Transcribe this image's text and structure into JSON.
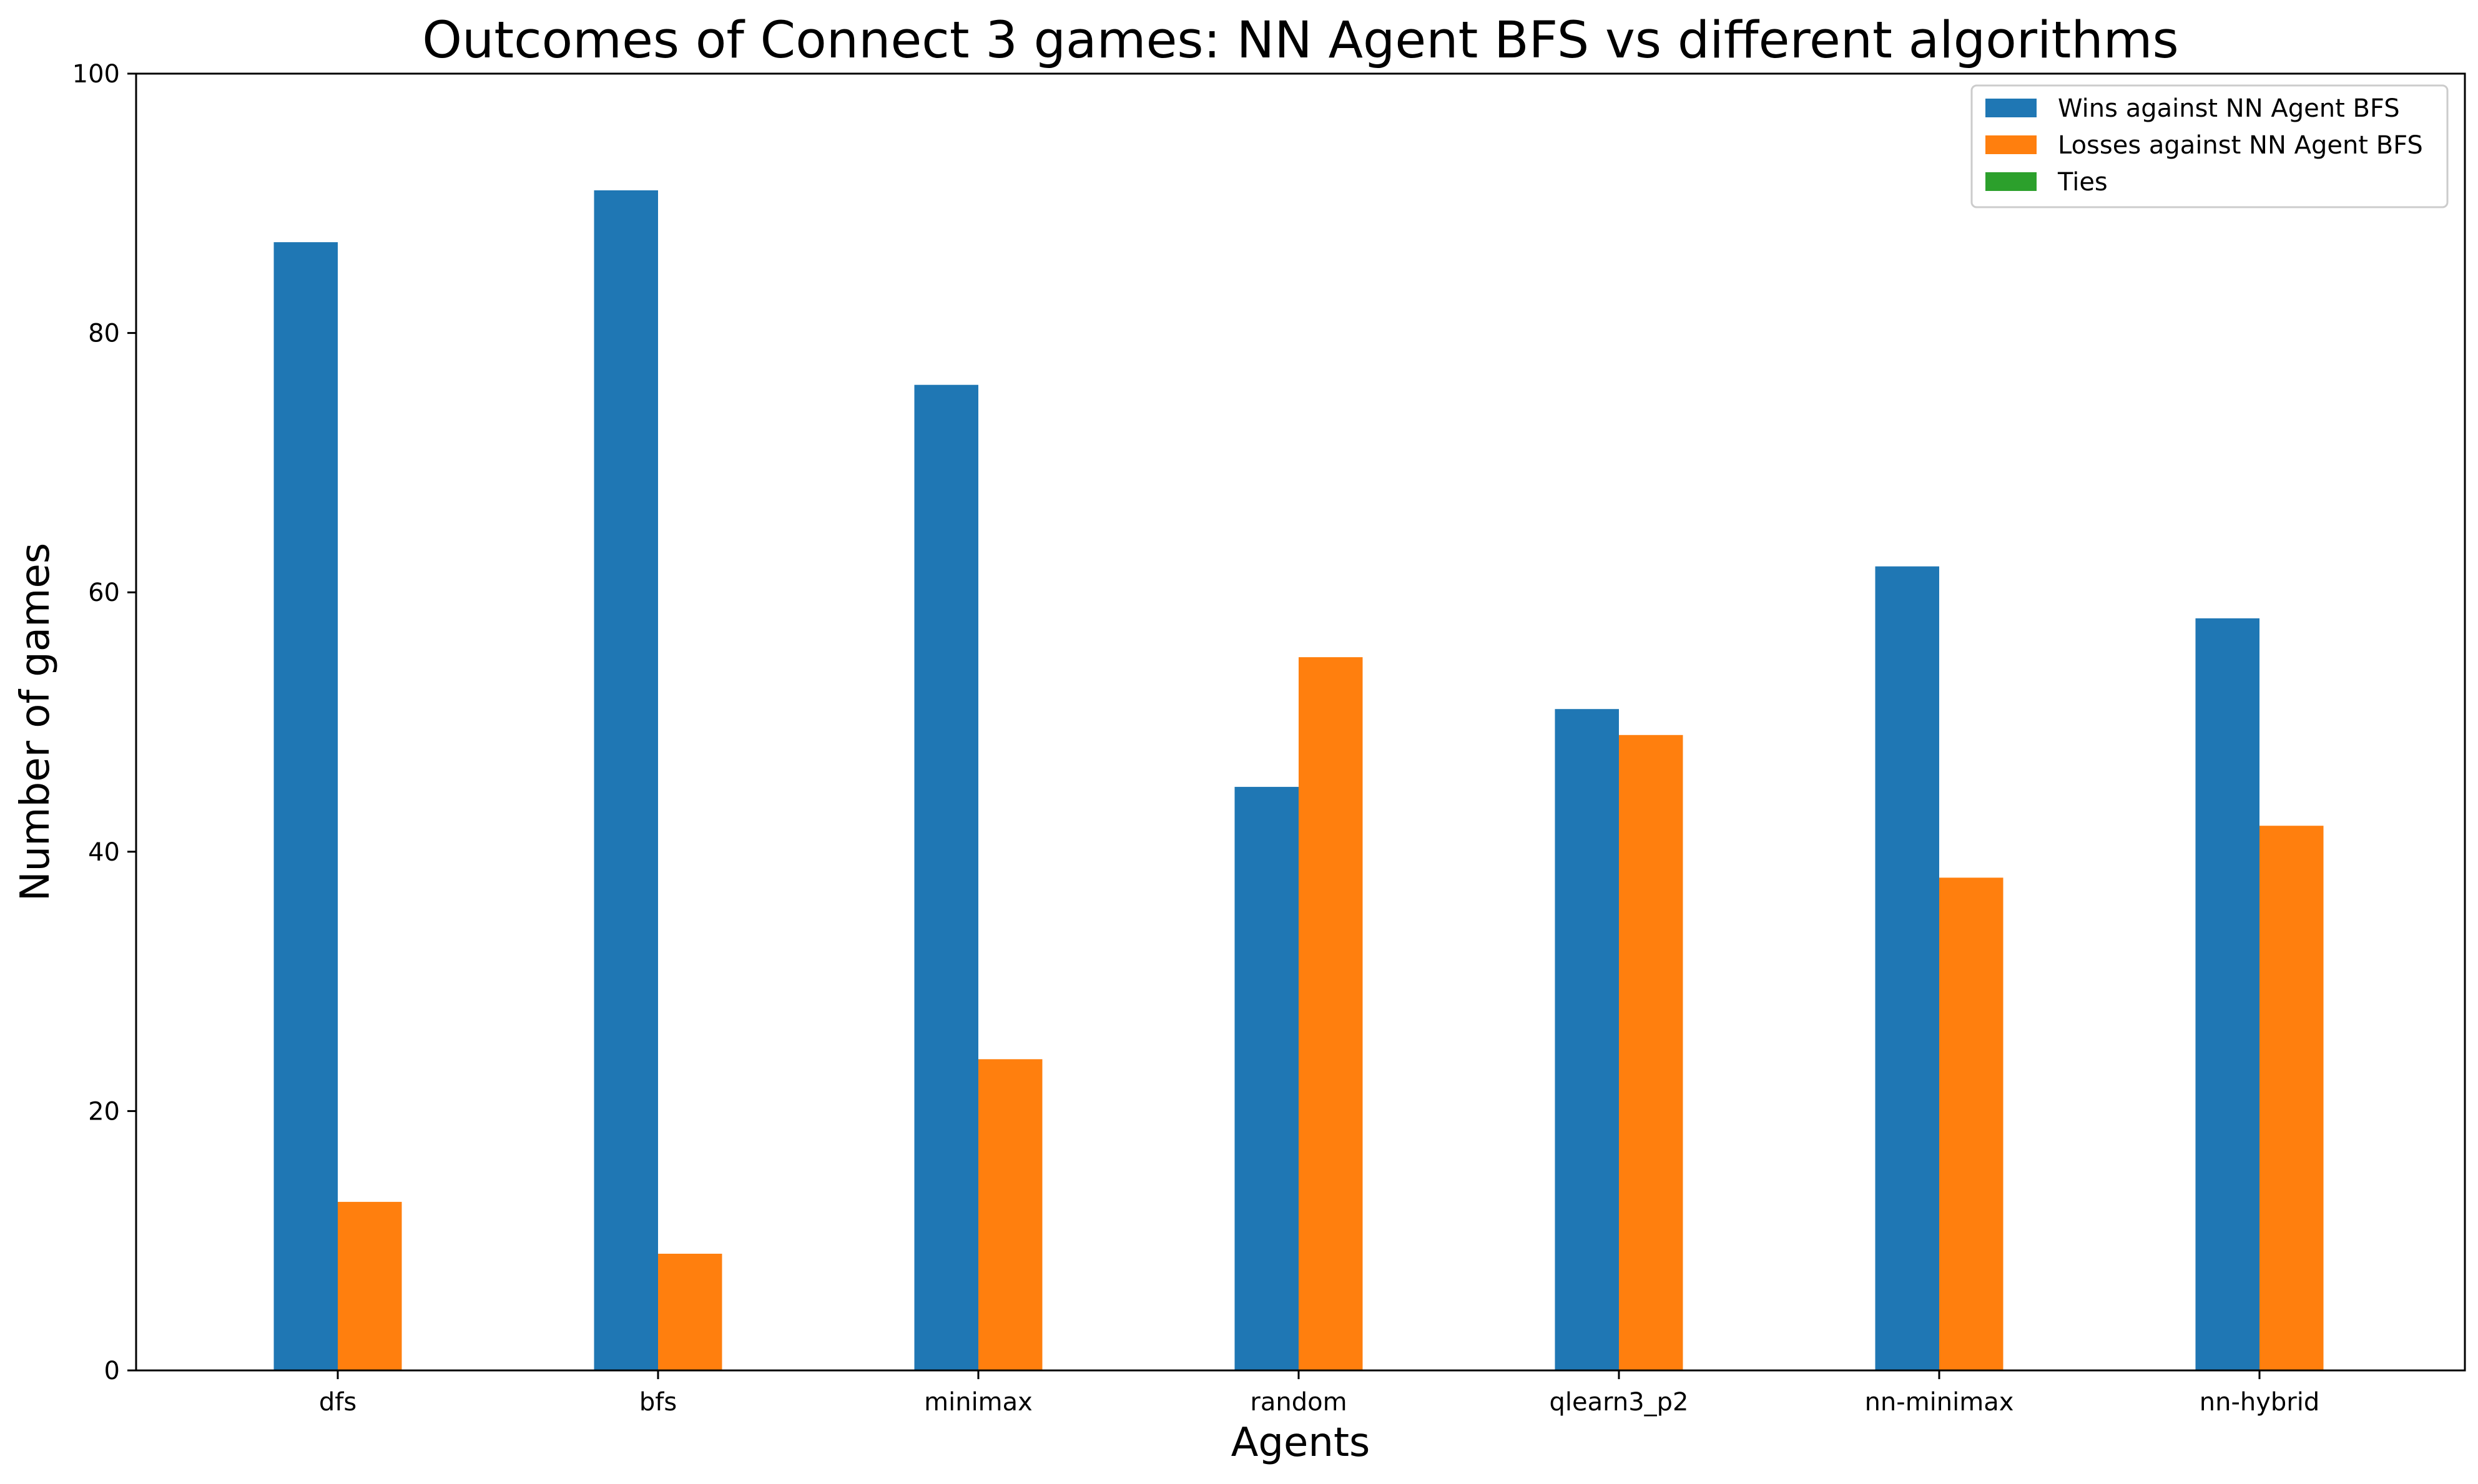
{
  "chart_data": {
    "type": "bar",
    "title": "Outcomes of Connect 3 games: NN Agent BFS vs different algorithms",
    "xlabel": "Agents",
    "ylabel": "Number of games",
    "ylim": [
      0,
      100
    ],
    "yticks": [
      0,
      20,
      40,
      60,
      80,
      100
    ],
    "grid": false,
    "legend_position": "top-right",
    "categories": [
      "dfs",
      "bfs",
      "minimax",
      "random",
      "qlearn3_p2",
      "nn-minimax",
      "nn-hybrid"
    ],
    "series": [
      {
        "name": "Wins against NN Agent BFS",
        "color": "#1f77b4",
        "values": [
          87,
          91,
          76,
          45,
          51,
          62,
          58
        ]
      },
      {
        "name": "Losses against NN Agent BFS",
        "color": "#ff7f0e",
        "values": [
          13,
          9,
          24,
          55,
          49,
          38,
          42
        ]
      },
      {
        "name": "Ties",
        "color": "#2ca02c",
        "values": [
          0,
          0,
          0,
          0,
          0,
          0,
          0
        ]
      }
    ]
  }
}
